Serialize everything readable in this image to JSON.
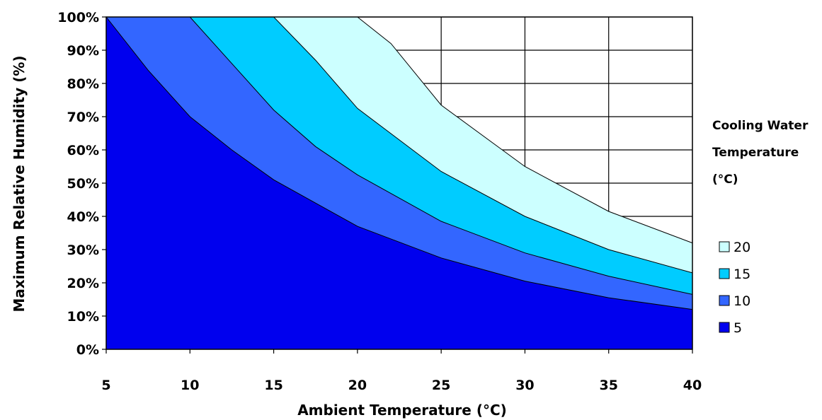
{
  "chart_data": {
    "type": "area",
    "xlabel": "Ambient Temperature (°C)",
    "ylabel": "Maximum Relative Humidity (%)",
    "xlim": [
      5,
      40
    ],
    "ylim": [
      0,
      100
    ],
    "x_ticks": [
      "5",
      "10",
      "15",
      "20",
      "25",
      "30",
      "35",
      "40"
    ],
    "y_ticks": [
      "0%",
      "10%",
      "20%",
      "30%",
      "40%",
      "50%",
      "60%",
      "70%",
      "80%",
      "90%",
      "100%"
    ],
    "grid": true,
    "legend_title": "Cooling Water Temperature (°C)",
    "legend_title_lines": [
      "Cooling Water",
      "Temperature",
      "(°C)"
    ],
    "legend_position": "right",
    "series": [
      {
        "name": "20",
        "color": "#ccffff",
        "points": [
          [
            19.5,
            100
          ],
          [
            20,
            100
          ],
          [
            22,
            92
          ],
          [
            25,
            73.5
          ],
          [
            30,
            55
          ],
          [
            35,
            41.5
          ],
          [
            40,
            32
          ]
        ]
      },
      {
        "name": "15",
        "color": "#00ccff",
        "points": [
          [
            14.5,
            100
          ],
          [
            15,
            100
          ],
          [
            17.5,
            87
          ],
          [
            20,
            72.5
          ],
          [
            25,
            53.5
          ],
          [
            30,
            40
          ],
          [
            35,
            30
          ],
          [
            40,
            23
          ]
        ]
      },
      {
        "name": "10",
        "color": "#3366ff",
        "points": [
          [
            9.5,
            100
          ],
          [
            10,
            100
          ],
          [
            12.5,
            86
          ],
          [
            15,
            72
          ],
          [
            17.5,
            61
          ],
          [
            20,
            52.5
          ],
          [
            25,
            38.5
          ],
          [
            30,
            29
          ],
          [
            35,
            22
          ],
          [
            40,
            16.5
          ]
        ]
      },
      {
        "name": "5",
        "color": "#0000ee",
        "points": [
          [
            5,
            100
          ],
          [
            7.5,
            84
          ],
          [
            10,
            70
          ],
          [
            12.5,
            60
          ],
          [
            15,
            51
          ],
          [
            17.5,
            44
          ],
          [
            20,
            37
          ],
          [
            25,
            27.5
          ],
          [
            30,
            20.5
          ],
          [
            35,
            15.5
          ],
          [
            40,
            12
          ]
        ]
      }
    ]
  }
}
